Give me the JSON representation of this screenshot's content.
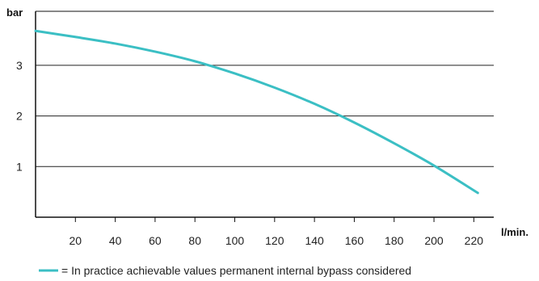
{
  "colors": {
    "curve": "#3bbfc4",
    "axis": "#111111",
    "grid": "#222222"
  },
  "legend": {
    "text": "= In practice achievable values permanent internal bypass considered"
  },
  "chart_data": {
    "type": "line",
    "ylabel": "bar",
    "xlabel": "l/min.",
    "xlim": [
      0,
      230
    ],
    "ylim": [
      0,
      4
    ],
    "xticks": [
      20,
      40,
      60,
      80,
      100,
      120,
      140,
      160,
      180,
      200,
      220
    ],
    "yticks": [
      1,
      2,
      3
    ],
    "grid": "horizontal",
    "legend_position": "bottom",
    "series": [
      {
        "name": "In practice achievable values permanent internal bypass considered",
        "x": [
          0,
          20,
          40,
          60,
          80,
          100,
          120,
          140,
          160,
          180,
          200,
          222
        ],
        "y": [
          3.68,
          3.56,
          3.43,
          3.27,
          3.08,
          2.84,
          2.56,
          2.24,
          1.87,
          1.46,
          1.02,
          0.48
        ]
      }
    ]
  }
}
